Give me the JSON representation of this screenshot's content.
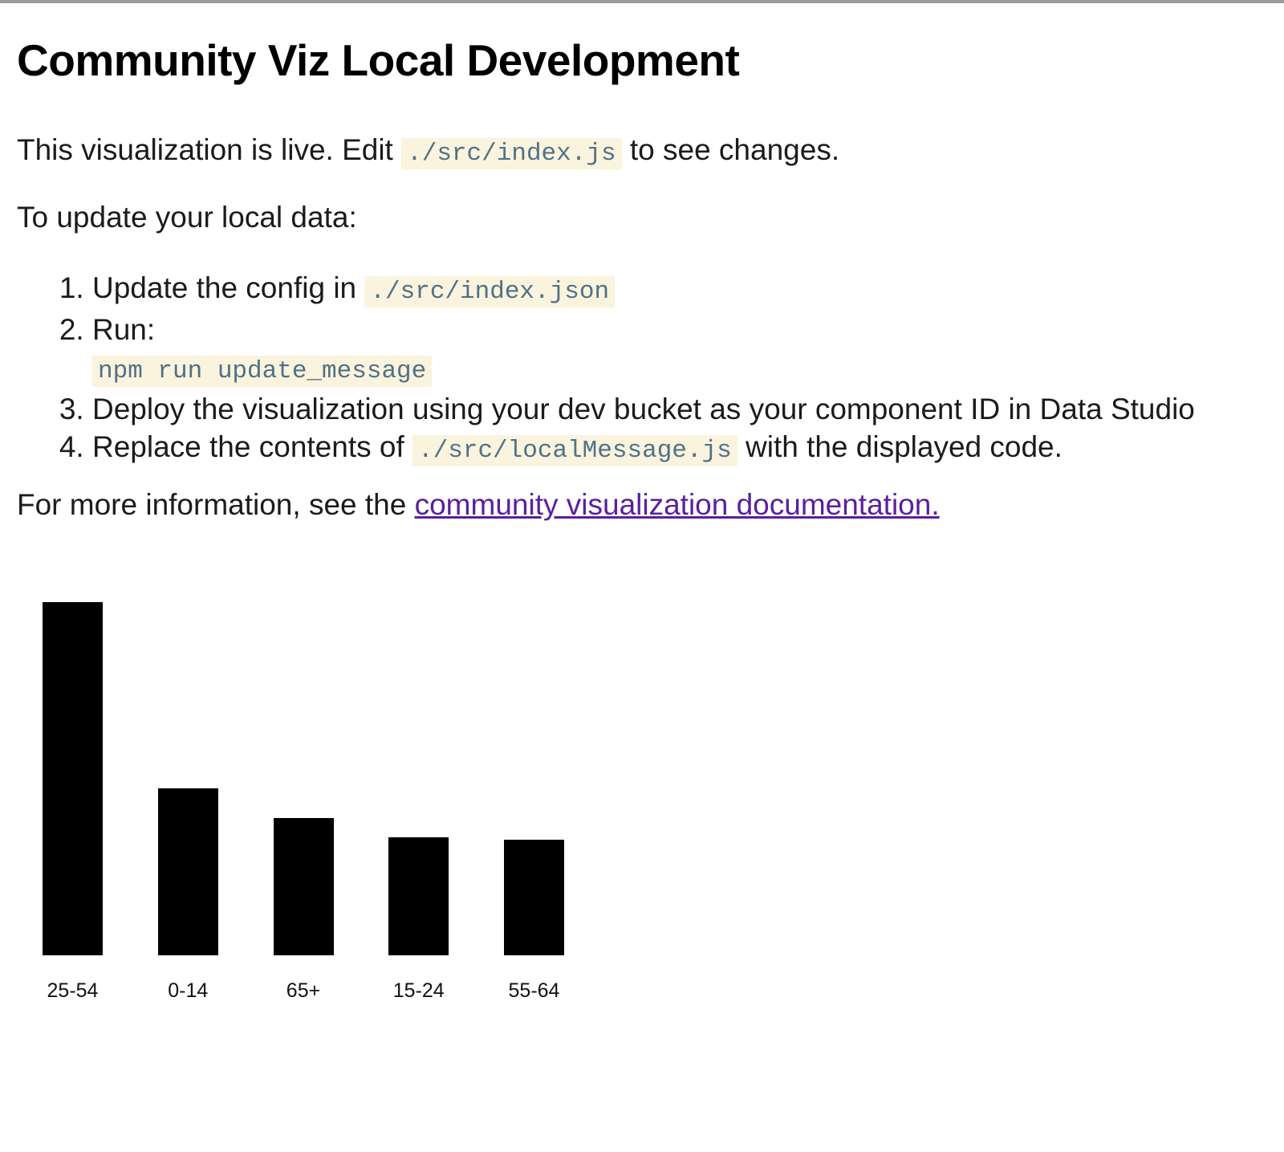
{
  "colors": {
    "top_strip": "#9b9b9b",
    "text": "#1b1b1b",
    "code_background": "#faf3dd",
    "code_text": "#4e7287",
    "link": "#5a1f9e",
    "bar": "#000000"
  },
  "page": {
    "title": "Community Viz Local Development",
    "intro": {
      "pre": "This visualization is live. Edit ",
      "code": "./src/index.js",
      "post": " to see changes."
    },
    "update_heading": "To update your local data:",
    "steps": [
      {
        "pre": "Update the config in ",
        "code": "./src/index.json",
        "post": ""
      },
      {
        "pre": "Run:",
        "code": "",
        "post": ""
      },
      {
        "pre": "Deploy the visualization using your dev bucket as your component ID in Data Studio",
        "code": "",
        "post": ""
      },
      {
        "pre": "Replace the contents of ",
        "code": "./src/localMessage.js",
        "post": " with the displayed code."
      }
    ],
    "run_command": "npm run update_message",
    "more_info": {
      "pre": "For more information, see the ",
      "link_text": "community visualization documentation."
    }
  },
  "chart_data": {
    "type": "bar",
    "categories": [
      "25-54",
      "0-14",
      "65+",
      "15-24",
      "55-64"
    ],
    "values": [
      39.3,
      18.6,
      15.3,
      13.1,
      12.9
    ],
    "title": "",
    "xlabel": "",
    "ylabel": "",
    "ylim": [
      0,
      40
    ],
    "grid": false,
    "legend": "none",
    "bar_color": "#000000"
  }
}
